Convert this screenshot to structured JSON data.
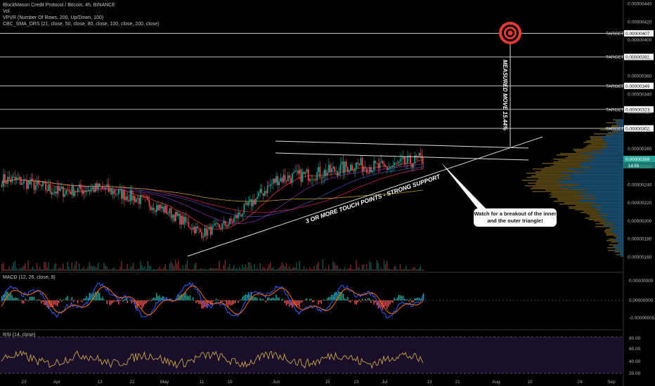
{
  "legend": {
    "title": "BlockMason Credit Protocol / Bitcoin, 4h, BINANCE",
    "line2": "Vol",
    "line3": "VPVR (Number Of Rows, 200, Up/Down, 100)",
    "line4": "CBC_SMA_DRS (21, close, 50, close, 80, close, 100, close, 200, close)"
  },
  "panes": {
    "macd_label": "MACD (12, 26, close, 9)",
    "rsi_label": "RSI (14, close)"
  },
  "annotations": {
    "support_text": "3 OR MORE TOUCH POINTS - STRONG SUPPORT",
    "measured_move": "MEASURED MOVE 15.44%",
    "callout": "Watch for a breakout of the inner and the outer triangle!",
    "target_label": "TARGET",
    "current_price": "0.00000269",
    "countdown": "1d 59"
  },
  "colors": {
    "background": "#000000",
    "bull": "#26a69a",
    "bear": "#ef5350",
    "target_line": "#ffffff",
    "vpvr_up": "#1f5f8b",
    "vpvr_down": "#6b5417",
    "rsi_line": "#c9a24a",
    "rsi_bg": "#1a0f2a",
    "macd_line": "#2962ff",
    "signal_line": "#ff6d00",
    "target_icon": "#e53935"
  },
  "chart_data": {
    "type": "candlestick",
    "x_tick_labels": [
      "23",
      "Apr",
      "13",
      "22",
      "May",
      "11",
      "19",
      "Jun",
      "15",
      "23",
      "Jul",
      "13",
      "21",
      "Aug",
      "10",
      "24",
      "Sep"
    ],
    "price_axis_labels": [
      "0.00000440",
      "0.00000420",
      "0.00000400",
      "0.00000380",
      "0.00000360",
      "0.00000340",
      "0.00000320",
      "0.00000300",
      "0.00000280",
      "0.00000260",
      "0.00000240",
      "0.00000220",
      "0.00000200",
      "0.00000180",
      "0.00000160"
    ],
    "target_prices": [
      "0.00000407",
      "0.00000381",
      "0.00000349",
      "0.00000323",
      "0.00000302"
    ],
    "macd_axis_labels": [
      "0.00000005",
      "0.00000000",
      "-0.00000005"
    ],
    "rsi_axis_labels": [
      "80.00",
      "60.00",
      "40.00",
      "20.00"
    ],
    "price_range": [
      1.5e-06,
      4.4e-06
    ],
    "approx_close_path": [
      {
        "date": "Mar 23",
        "close": 2.45e-06
      },
      {
        "date": "Apr 1",
        "close": 2.32e-06
      },
      {
        "date": "Apr 13",
        "close": 2.36e-06
      },
      {
        "date": "Apr 22",
        "close": 2.26e-06
      },
      {
        "date": "May 1",
        "close": 2.12e-06
      },
      {
        "date": "May 11",
        "close": 1.86e-06
      },
      {
        "date": "May 19",
        "close": 1.98e-06
      },
      {
        "date": "Jun 1",
        "close": 2.46e-06
      },
      {
        "date": "Jun 15",
        "close": 2.54e-06
      },
      {
        "date": "Jun 23",
        "close": 2.62e-06
      },
      {
        "date": "Jul 1",
        "close": 2.58e-06
      },
      {
        "date": "Jul 10",
        "close": 2.69e-06
      }
    ],
    "grid": false
  }
}
